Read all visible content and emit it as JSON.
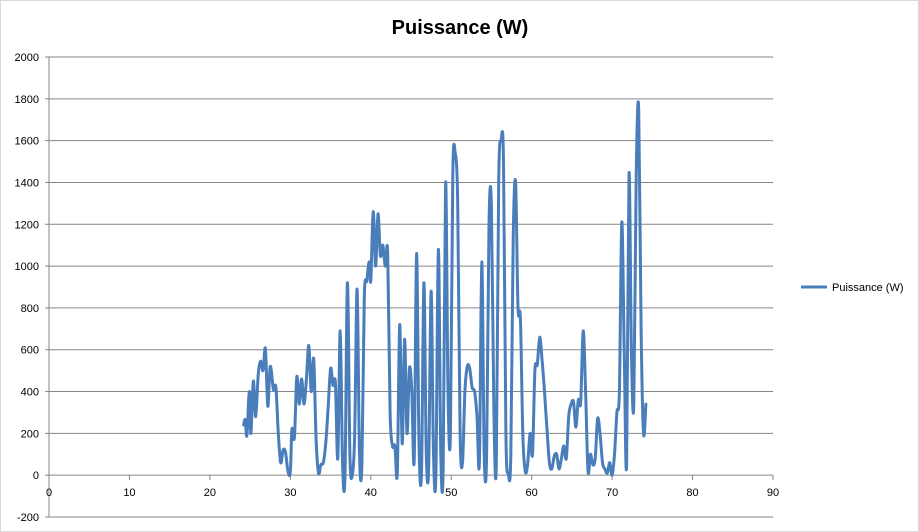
{
  "chart_data": {
    "type": "line",
    "title": "Puissance (W)",
    "xlabel": "",
    "ylabel": "",
    "xlim": [
      0,
      90
    ],
    "ylim": [
      -200,
      2000
    ],
    "x_ticks": [
      0,
      10,
      20,
      30,
      40,
      50,
      60,
      70,
      80,
      90
    ],
    "y_ticks": [
      -200,
      0,
      200,
      400,
      600,
      800,
      1000,
      1200,
      1400,
      1600,
      1800,
      2000
    ],
    "grid": "horizontal",
    "legend_position": "right",
    "series": [
      {
        "name": "Puissance (W)",
        "color": "#4a7ebb",
        "points": [
          [
            24.2,
            240
          ],
          [
            24.4,
            265
          ],
          [
            24.6,
            190
          ],
          [
            24.9,
            400
          ],
          [
            25.1,
            200
          ],
          [
            25.4,
            450
          ],
          [
            25.7,
            280
          ],
          [
            26.0,
            480
          ],
          [
            26.3,
            545
          ],
          [
            26.6,
            500
          ],
          [
            26.9,
            605
          ],
          [
            27.2,
            330
          ],
          [
            27.5,
            520
          ],
          [
            27.9,
            410
          ],
          [
            28.2,
            420
          ],
          [
            28.5,
            200
          ],
          [
            28.8,
            60
          ],
          [
            29.1,
            120
          ],
          [
            29.4,
            110
          ],
          [
            29.7,
            20
          ],
          [
            30.0,
            15
          ],
          [
            30.2,
            220
          ],
          [
            30.5,
            180
          ],
          [
            30.8,
            470
          ],
          [
            31.1,
            340
          ],
          [
            31.4,
            460
          ],
          [
            31.7,
            340
          ],
          [
            32.0,
            460
          ],
          [
            32.3,
            620
          ],
          [
            32.6,
            400
          ],
          [
            32.9,
            555
          ],
          [
            33.2,
            170
          ],
          [
            33.5,
            10
          ],
          [
            33.8,
            50
          ],
          [
            34.1,
            60
          ],
          [
            34.4,
            150
          ],
          [
            34.7,
            320
          ],
          [
            35.0,
            510
          ],
          [
            35.3,
            430
          ],
          [
            35.6,
            440
          ],
          [
            35.9,
            80
          ],
          [
            36.2,
            690
          ],
          [
            36.5,
            50
          ],
          [
            36.8,
            0
          ],
          [
            37.1,
            920
          ],
          [
            37.4,
            100
          ],
          [
            37.7,
            0
          ],
          [
            38.0,
            200
          ],
          [
            38.3,
            890
          ],
          [
            38.6,
            100
          ],
          [
            38.9,
            50
          ],
          [
            39.2,
            850
          ],
          [
            39.5,
            930
          ],
          [
            39.8,
            1020
          ],
          [
            40.0,
            930
          ],
          [
            40.3,
            1260
          ],
          [
            40.6,
            1000
          ],
          [
            40.9,
            1250
          ],
          [
            41.2,
            1050
          ],
          [
            41.5,
            1100
          ],
          [
            41.8,
            1000
          ],
          [
            42.1,
            1060
          ],
          [
            42.4,
            300
          ],
          [
            42.7,
            140
          ],
          [
            43.0,
            140
          ],
          [
            43.3,
            10
          ],
          [
            43.6,
            720
          ],
          [
            43.9,
            150
          ],
          [
            44.2,
            650
          ],
          [
            44.5,
            200
          ],
          [
            44.8,
            510
          ],
          [
            45.1,
            400
          ],
          [
            45.4,
            70
          ],
          [
            45.7,
            1060
          ],
          [
            46.0,
            150
          ],
          [
            46.3,
            10
          ],
          [
            46.6,
            920
          ],
          [
            46.9,
            100
          ],
          [
            47.2,
            40
          ],
          [
            47.5,
            880
          ],
          [
            47.8,
            100
          ],
          [
            48.1,
            0
          ],
          [
            48.4,
            1080
          ],
          [
            48.7,
            100
          ],
          [
            49.0,
            40
          ],
          [
            49.3,
            1400
          ],
          [
            49.6,
            400
          ],
          [
            49.9,
            190
          ],
          [
            50.2,
            1440
          ],
          [
            50.5,
            1540
          ],
          [
            50.8,
            1300
          ],
          [
            51.1,
            200
          ],
          [
            51.4,
            60
          ],
          [
            51.7,
            400
          ],
          [
            52.0,
            520
          ],
          [
            52.3,
            510
          ],
          [
            52.6,
            420
          ],
          [
            52.9,
            400
          ],
          [
            53.2,
            280
          ],
          [
            53.5,
            60
          ],
          [
            53.8,
            1020
          ],
          [
            54.1,
            100
          ],
          [
            54.4,
            90
          ],
          [
            54.7,
            1200
          ],
          [
            55.0,
            1290
          ],
          [
            55.3,
            300
          ],
          [
            55.6,
            50
          ],
          [
            55.9,
            1400
          ],
          [
            56.2,
            1600
          ],
          [
            56.5,
            1500
          ],
          [
            56.8,
            200
          ],
          [
            57.1,
            10
          ],
          [
            57.4,
            90
          ],
          [
            57.7,
            1130
          ],
          [
            58.0,
            1400
          ],
          [
            58.3,
            800
          ],
          [
            58.6,
            750
          ],
          [
            58.9,
            200
          ],
          [
            59.2,
            20
          ],
          [
            59.5,
            50
          ],
          [
            59.8,
            200
          ],
          [
            60.1,
            100
          ],
          [
            60.4,
            500
          ],
          [
            60.7,
            530
          ],
          [
            61.0,
            660
          ],
          [
            61.3,
            550
          ],
          [
            61.6,
            400
          ],
          [
            61.9,
            220
          ],
          [
            62.2,
            60
          ],
          [
            62.5,
            30
          ],
          [
            62.8,
            90
          ],
          [
            63.1,
            100
          ],
          [
            63.4,
            30
          ],
          [
            63.7,
            80
          ],
          [
            64.0,
            140
          ],
          [
            64.3,
            80
          ],
          [
            64.6,
            280
          ],
          [
            64.9,
            340
          ],
          [
            65.2,
            350
          ],
          [
            65.5,
            230
          ],
          [
            65.8,
            360
          ],
          [
            66.1,
            350
          ],
          [
            66.4,
            690
          ],
          [
            66.7,
            400
          ],
          [
            67.0,
            20
          ],
          [
            67.3,
            100
          ],
          [
            67.6,
            50
          ],
          [
            67.9,
            80
          ],
          [
            68.2,
            270
          ],
          [
            68.5,
            200
          ],
          [
            68.8,
            60
          ],
          [
            69.1,
            30
          ],
          [
            69.4,
            10
          ],
          [
            69.7,
            60
          ],
          [
            70.0,
            0
          ],
          [
            70.3,
            100
          ],
          [
            70.6,
            300
          ],
          [
            70.9,
            400
          ],
          [
            71.2,
            1210
          ],
          [
            71.5,
            600
          ],
          [
            71.8,
            50
          ],
          [
            72.1,
            1440
          ],
          [
            72.4,
            600
          ],
          [
            72.7,
            340
          ],
          [
            73.0,
            1430
          ],
          [
            73.3,
            1750
          ],
          [
            73.6,
            700
          ],
          [
            73.9,
            200
          ],
          [
            74.2,
            340
          ]
        ]
      }
    ]
  }
}
